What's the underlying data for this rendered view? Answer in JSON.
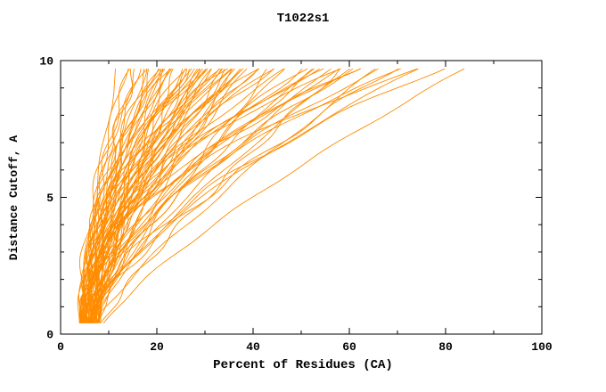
{
  "title": "T1022s1",
  "axes": {
    "xlabel": "Percent of Residues (CA)",
    "ylabel": "Distance Cutoff, A",
    "xlim": [
      0,
      100
    ],
    "ylim": [
      0,
      10
    ],
    "xticks": [
      0,
      20,
      40,
      60,
      80,
      100
    ],
    "xtick_labels": [
      "0",
      "20",
      "40",
      "60",
      "80",
      "100"
    ],
    "yticks": [
      0,
      5,
      10
    ],
    "ytick_labels": [
      "0",
      "5",
      "10"
    ],
    "x_minor_step": 10,
    "y_minor_step": 1
  },
  "colors": {
    "curve": "#ff8c00",
    "axis": "#000000",
    "text": "#000000",
    "background": "#ffffff"
  },
  "chart_data": {
    "type": "line",
    "title": "T1022s1",
    "xlabel": "Percent of Residues (CA)",
    "ylabel": "Distance Cutoff, A",
    "xlim": [
      0,
      100
    ],
    "ylim": [
      0,
      10
    ],
    "grid": false,
    "legend": "none",
    "description": "Bundle of orange per-model accuracy curves: percent of CA residues fitting under a given distance cutoff. Curves rise from ~4-8% near cutoff 0.5 A and fan out to reach ~12-87% near cutoff 10 A.",
    "curve_model": "percent(d) = p0 + (pend - p0) * (d/10)^gamma, d sampled in [0.4, 9.7]; triples below are [p0, pend, gamma]",
    "curves": [
      [
        4.0,
        12,
        1.3
      ],
      [
        5.2,
        14,
        1.9
      ],
      [
        6.5,
        15,
        2.4
      ],
      [
        4.6,
        16,
        1.6
      ],
      [
        7.3,
        17,
        2.1
      ],
      [
        5.8,
        18,
        1.4
      ],
      [
        4.3,
        19,
        2.6
      ],
      [
        6.1,
        20,
        1.8
      ],
      [
        7.8,
        21,
        1.2
      ],
      [
        5.0,
        21.5,
        2.2
      ],
      [
        4.0,
        22,
        1.9
      ],
      [
        5.2,
        23,
        1.3
      ],
      [
        6.5,
        23.5,
        2.1
      ],
      [
        4.6,
        24,
        2.6
      ],
      [
        7.3,
        25,
        1.6
      ],
      [
        5.8,
        25.5,
        2.4
      ],
      [
        4.3,
        26,
        1.2
      ],
      [
        6.1,
        27,
        2.2
      ],
      [
        7.8,
        27.5,
        1.4
      ],
      [
        5.0,
        28,
        1.8
      ],
      [
        4.0,
        29,
        2.4
      ],
      [
        5.2,
        29.5,
        1.6
      ],
      [
        6.5,
        30,
        1.3
      ],
      [
        4.6,
        31,
        2.2
      ],
      [
        7.3,
        31.5,
        1.9
      ],
      [
        5.8,
        32,
        2.6
      ],
      [
        4.3,
        33,
        1.4
      ],
      [
        6.1,
        33.5,
        2.1
      ],
      [
        7.8,
        34,
        1.8
      ],
      [
        5.0,
        35,
        1.2
      ],
      [
        4.0,
        35.5,
        2.1
      ],
      [
        5.2,
        36,
        1.4
      ],
      [
        6.5,
        37,
        2.2
      ],
      [
        4.6,
        37.5,
        1.2
      ],
      [
        7.3,
        38,
        1.8
      ],
      [
        5.8,
        39,
        2.6
      ],
      [
        4.3,
        39.5,
        1.9
      ],
      [
        6.1,
        40,
        1.3
      ],
      [
        7.8,
        41,
        2.4
      ],
      [
        5.0,
        42,
        1.6
      ],
      [
        4.0,
        43,
        1.8
      ],
      [
        5.2,
        44,
        2.6
      ],
      [
        6.5,
        45,
        1.2
      ],
      [
        4.6,
        46,
        1.9
      ],
      [
        7.3,
        47,
        2.4
      ],
      [
        5.8,
        48,
        1.3
      ],
      [
        4.3,
        50,
        2.1
      ],
      [
        6.1,
        52,
        1.6
      ],
      [
        7.8,
        54,
        2.2
      ],
      [
        5.0,
        55,
        1.4
      ],
      [
        4.0,
        56,
        1.6
      ],
      [
        5.2,
        57,
        2.2
      ],
      [
        6.5,
        58,
        1.4
      ],
      [
        4.6,
        59,
        2.4
      ],
      [
        7.3,
        60,
        1.2
      ],
      [
        5.8,
        61,
        1.9
      ],
      [
        4.3,
        62,
        1.3
      ],
      [
        6.1,
        63,
        2.6
      ],
      [
        7.8,
        64,
        1.8
      ],
      [
        5.0,
        65,
        2.1
      ],
      [
        4.0,
        66,
        2.2
      ],
      [
        5.2,
        68,
        1.2
      ],
      [
        6.5,
        70,
        1.9
      ],
      [
        4.6,
        72,
        1.4
      ],
      [
        7.3,
        75,
        2.1
      ],
      [
        5.8,
        78,
        1.6
      ],
      [
        4.3,
        80,
        2.4
      ],
      [
        6.1,
        83,
        1.8
      ],
      [
        7.8,
        87,
        1.3
      ],
      [
        4.8,
        16.5,
        2.0
      ],
      [
        6.8,
        18.5,
        1.5
      ],
      [
        5.5,
        20.5,
        2.3
      ],
      [
        4.2,
        22.5,
        1.7
      ],
      [
        7.0,
        24.5,
        2.5
      ],
      [
        5.9,
        26.5,
        1.3
      ],
      [
        4.5,
        28.5,
        2.0
      ],
      [
        6.3,
        30.5,
        1.5
      ],
      [
        7.5,
        32.5,
        2.3
      ],
      [
        5.1,
        34.5,
        1.7
      ],
      [
        4.9,
        36.5,
        2.5
      ],
      [
        6.6,
        38.5,
        1.4
      ]
    ]
  }
}
